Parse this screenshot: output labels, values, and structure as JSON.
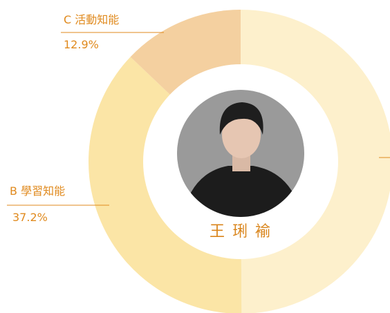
{
  "chart_data": {
    "type": "donut",
    "categories": [
      null,
      "B 學習知能",
      "C 活動知能"
    ],
    "values": [
      49.9,
      37.2,
      12.9
    ],
    "value_labels": [
      null,
      "37.2%",
      "12.9%"
    ],
    "colors": [
      "#fdf0cc",
      "#fbe5a6",
      "#f4d0a0"
    ],
    "center_label": "王 琍 褕"
  }
}
